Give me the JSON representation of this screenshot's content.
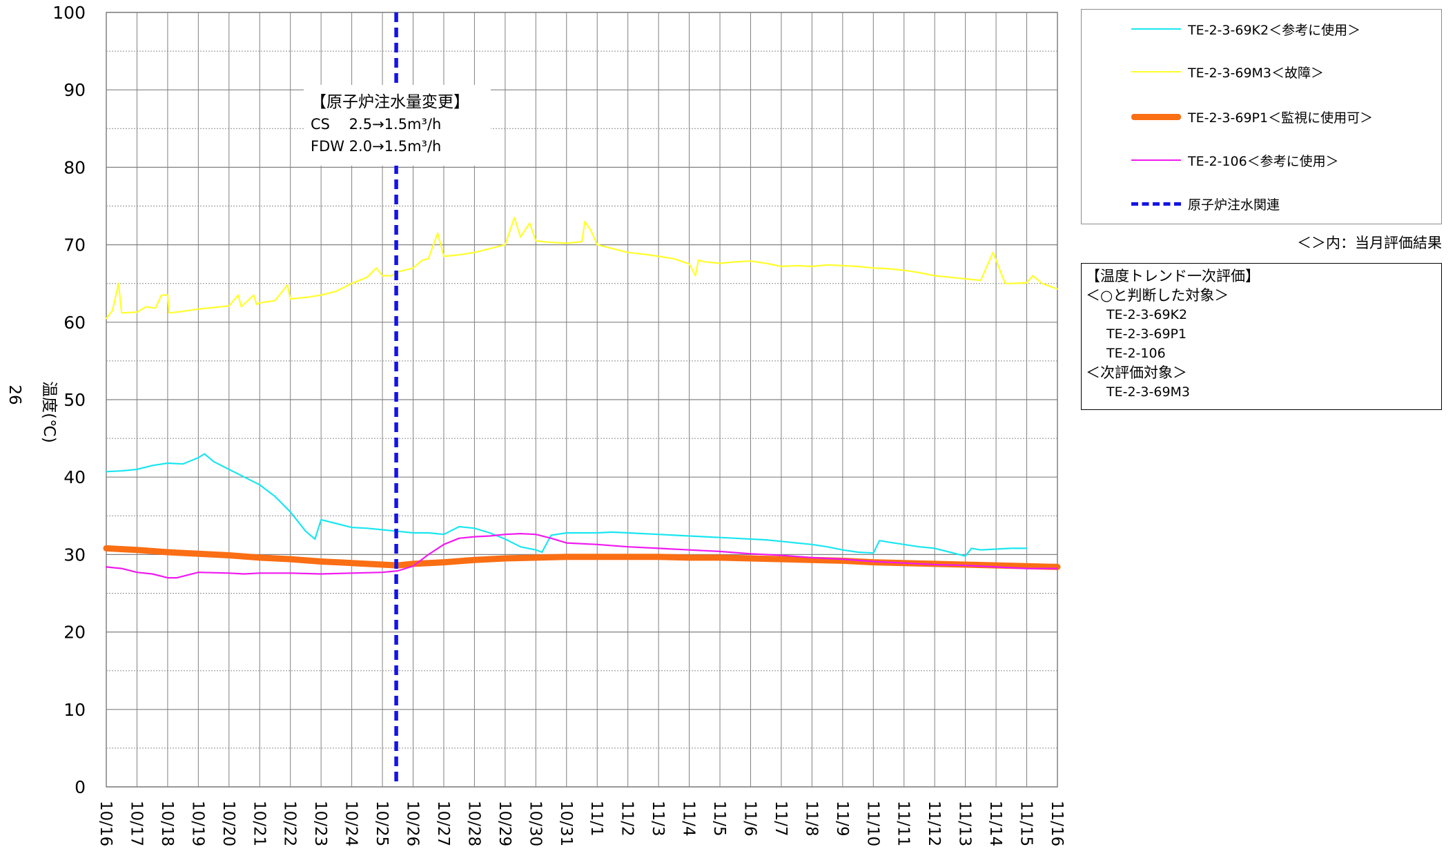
{
  "chart_data": {
    "type": "line",
    "ylabel": "温度(℃)",
    "page_number": "26",
    "ylim": [
      0,
      100
    ],
    "yticks": [
      0,
      10,
      20,
      30,
      40,
      50,
      60,
      70,
      80,
      90,
      100
    ],
    "x_tick_labels": [
      "10/16",
      "10/17",
      "10/18",
      "10/19",
      "10/20",
      "10/21",
      "10/22",
      "10/23",
      "10/24",
      "10/25",
      "10/26",
      "10/27",
      "10/28",
      "10/29",
      "10/30",
      "10/31",
      "11/1",
      "11/2",
      "11/3",
      "11/4",
      "11/5",
      "11/6",
      "11/7",
      "11/8",
      "11/9",
      "11/10",
      "11/11",
      "11/12",
      "11/13",
      "11/14",
      "11/15",
      "11/16"
    ],
    "grid": true,
    "legend_position": "right",
    "series": [
      {
        "name": "TE-2-3-69K2＜参考に使用＞",
        "color": "#19e6f0",
        "style": "thin",
        "points": [
          [
            0,
            40.7
          ],
          [
            0.5,
            40.8
          ],
          [
            1,
            41
          ],
          [
            1.5,
            41.5
          ],
          [
            2,
            41.8
          ],
          [
            2.5,
            41.7
          ],
          [
            3,
            42.5
          ],
          [
            3.2,
            43
          ],
          [
            3.5,
            42
          ],
          [
            4,
            41
          ],
          [
            4.5,
            40
          ],
          [
            5,
            39
          ],
          [
            5.5,
            37.5
          ],
          [
            6,
            35.5
          ],
          [
            6.5,
            33
          ],
          [
            6.8,
            32
          ],
          [
            7,
            34.5
          ],
          [
            7.5,
            34
          ],
          [
            8,
            33.5
          ],
          [
            8.5,
            33.4
          ],
          [
            9,
            33.2
          ],
          [
            9.5,
            33
          ],
          [
            10,
            32.8
          ],
          [
            10.5,
            32.8
          ],
          [
            11,
            32.6
          ],
          [
            11.5,
            33.6
          ],
          [
            12,
            33.4
          ],
          [
            12.5,
            32.8
          ],
          [
            13,
            32
          ],
          [
            13.5,
            31
          ],
          [
            14,
            30.6
          ],
          [
            14.2,
            30.3
          ],
          [
            14.5,
            32.5
          ],
          [
            15,
            32.8
          ],
          [
            15.5,
            32.8
          ],
          [
            16,
            32.8
          ],
          [
            16.5,
            32.9
          ],
          [
            17,
            32.8
          ],
          [
            17.5,
            32.7
          ],
          [
            18,
            32.6
          ],
          [
            18.5,
            32.5
          ],
          [
            19,
            32.4
          ],
          [
            19.5,
            32.3
          ],
          [
            20,
            32.2
          ],
          [
            20.5,
            32.1
          ],
          [
            21,
            32
          ],
          [
            21.5,
            31.9
          ],
          [
            22,
            31.7
          ],
          [
            22.5,
            31.5
          ],
          [
            23,
            31.3
          ],
          [
            23.5,
            31
          ],
          [
            24,
            30.6
          ],
          [
            24.5,
            30.3
          ],
          [
            25,
            30.2
          ],
          [
            25.2,
            31.8
          ],
          [
            25.5,
            31.6
          ],
          [
            26,
            31.3
          ],
          [
            26.5,
            31
          ],
          [
            27,
            30.8
          ],
          [
            27.5,
            30.3
          ],
          [
            28,
            29.8
          ],
          [
            28.2,
            30.8
          ],
          [
            28.5,
            30.6
          ],
          [
            29,
            30.7
          ],
          [
            29.5,
            30.8
          ],
          [
            30,
            30.8
          ]
        ]
      },
      {
        "name": "TE-2-3-69M3＜故障＞",
        "color": "#ffff2a",
        "style": "thin",
        "points": [
          [
            0,
            60.5
          ],
          [
            0.2,
            61.5
          ],
          [
            0.4,
            65
          ],
          [
            0.5,
            61.2
          ],
          [
            1,
            61.3
          ],
          [
            1.3,
            62
          ],
          [
            1.6,
            61.8
          ],
          [
            1.8,
            63.5
          ],
          [
            2,
            63.5
          ],
          [
            2.05,
            61.2
          ],
          [
            2.5,
            61.4
          ],
          [
            3,
            61.7
          ],
          [
            3.5,
            61.9
          ],
          [
            4,
            62.1
          ],
          [
            4.3,
            63.5
          ],
          [
            4.4,
            62
          ],
          [
            4.8,
            63.5
          ],
          [
            4.9,
            62.3
          ],
          [
            5,
            62.5
          ],
          [
            5.5,
            62.8
          ],
          [
            5.9,
            64.8
          ],
          [
            6,
            63
          ],
          [
            6.5,
            63.2
          ],
          [
            7,
            63.5
          ],
          [
            7.5,
            64
          ],
          [
            8,
            65
          ],
          [
            8.5,
            65.8
          ],
          [
            8.8,
            67
          ],
          [
            9,
            66
          ],
          [
            9.3,
            66
          ],
          [
            9.5,
            66.5
          ],
          [
            10,
            67
          ],
          [
            10.3,
            68
          ],
          [
            10.5,
            68.2
          ],
          [
            10.8,
            71.5
          ],
          [
            11,
            68.5
          ],
          [
            11.5,
            68.7
          ],
          [
            12,
            69
          ],
          [
            12.5,
            69.5
          ],
          [
            13,
            70
          ],
          [
            13.3,
            73.5
          ],
          [
            13.5,
            71
          ],
          [
            13.8,
            72.8
          ],
          [
            14,
            70.5
          ],
          [
            14.5,
            70.3
          ],
          [
            15,
            70.2
          ],
          [
            15.5,
            70.4
          ],
          [
            15.6,
            73
          ],
          [
            15.8,
            71.8
          ],
          [
            16,
            70
          ],
          [
            16.5,
            69.5
          ],
          [
            17,
            69
          ],
          [
            17.5,
            68.8
          ],
          [
            18,
            68.5
          ],
          [
            18.5,
            68.2
          ],
          [
            19,
            67.5
          ],
          [
            19.2,
            66
          ],
          [
            19.3,
            68
          ],
          [
            19.5,
            67.8
          ],
          [
            20,
            67.6
          ],
          [
            20.5,
            67.8
          ],
          [
            21,
            67.9
          ],
          [
            21.5,
            67.6
          ],
          [
            22,
            67.2
          ],
          [
            22.5,
            67.3
          ],
          [
            23,
            67.2
          ],
          [
            23.5,
            67.4
          ],
          [
            24,
            67.3
          ],
          [
            24.5,
            67.2
          ],
          [
            25,
            67
          ],
          [
            25.5,
            66.9
          ],
          [
            26,
            66.7
          ],
          [
            26.5,
            66.4
          ],
          [
            27,
            66
          ],
          [
            27.5,
            65.8
          ],
          [
            28,
            65.6
          ],
          [
            28.5,
            65.4
          ],
          [
            28.9,
            69
          ],
          [
            29.1,
            67
          ],
          [
            29.3,
            65
          ],
          [
            29.5,
            65
          ],
          [
            30,
            65.1
          ],
          [
            30.2,
            66
          ],
          [
            30.5,
            65
          ],
          [
            31,
            64.3
          ]
        ]
      },
      {
        "name": "TE-2-3-69P1＜監視に使用可＞",
        "color": "#fa6e14",
        "style": "thick",
        "points": [
          [
            0,
            30.8
          ],
          [
            1,
            30.6
          ],
          [
            2,
            30.3
          ],
          [
            3,
            30.1
          ],
          [
            4,
            29.9
          ],
          [
            5,
            29.6
          ],
          [
            6,
            29.4
          ],
          [
            7,
            29.1
          ],
          [
            8,
            28.9
          ],
          [
            9,
            28.7
          ],
          [
            9.5,
            28.6
          ],
          [
            10,
            28.8
          ],
          [
            11,
            29
          ],
          [
            12,
            29.3
          ],
          [
            13,
            29.5
          ],
          [
            14,
            29.6
          ],
          [
            15,
            29.7
          ],
          [
            16,
            29.7
          ],
          [
            17,
            29.7
          ],
          [
            18,
            29.7
          ],
          [
            19,
            29.6
          ],
          [
            20,
            29.6
          ],
          [
            21,
            29.5
          ],
          [
            22,
            29.4
          ],
          [
            23,
            29.3
          ],
          [
            24,
            29.2
          ],
          [
            25,
            29
          ],
          [
            26,
            28.9
          ],
          [
            27,
            28.8
          ],
          [
            28,
            28.7
          ],
          [
            29,
            28.6
          ],
          [
            30,
            28.5
          ],
          [
            31,
            28.4
          ]
        ]
      },
      {
        "name": "TE-2-106＜参考に使用＞",
        "color": "#f019f0",
        "style": "thin",
        "points": [
          [
            0,
            28.4
          ],
          [
            0.5,
            28.2
          ],
          [
            1,
            27.7
          ],
          [
            1.5,
            27.5
          ],
          [
            2,
            27
          ],
          [
            2.3,
            27
          ],
          [
            2.7,
            27.4
          ],
          [
            3,
            27.7
          ],
          [
            4,
            27.6
          ],
          [
            4.5,
            27.5
          ],
          [
            5,
            27.6
          ],
          [
            6,
            27.6
          ],
          [
            7,
            27.5
          ],
          [
            8,
            27.6
          ],
          [
            9,
            27.7
          ],
          [
            9.5,
            27.9
          ],
          [
            10,
            28.5
          ],
          [
            10.5,
            30
          ],
          [
            11,
            31.3
          ],
          [
            11.5,
            32.1
          ],
          [
            12,
            32.3
          ],
          [
            12.5,
            32.4
          ],
          [
            13,
            32.6
          ],
          [
            13.5,
            32.7
          ],
          [
            14,
            32.6
          ],
          [
            14.5,
            32.1
          ],
          [
            15,
            31.5
          ],
          [
            16,
            31.3
          ],
          [
            17,
            31
          ],
          [
            18,
            30.8
          ],
          [
            19,
            30.6
          ],
          [
            20,
            30.4
          ],
          [
            21,
            30.1
          ],
          [
            22,
            29.9
          ],
          [
            23,
            29.6
          ],
          [
            24,
            29.4
          ],
          [
            25,
            29.1
          ],
          [
            26,
            28.9
          ],
          [
            27,
            28.7
          ],
          [
            28,
            28.6
          ],
          [
            29,
            28.4
          ],
          [
            30,
            28.2
          ],
          [
            31,
            28.2
          ]
        ]
      }
    ],
    "marker": {
      "name": "原子炉注水関連",
      "color": "#1414e6",
      "x": 9.45
    },
    "annotation": {
      "lines": [
        "【原子炉注水量変更】",
        "CS　 2.5→1.5m³/h",
        "FDW  2.0→1.5m³/h"
      ]
    }
  },
  "legend": {
    "items": [
      {
        "label": "TE-2-3-69K2＜参考に使用＞",
        "color": "#19e6f0",
        "style": "thin"
      },
      {
        "label": "TE-2-3-69M3＜故障＞",
        "color": "#ffff2a",
        "style": "thin"
      },
      {
        "label": "TE-2-3-69P1＜監視に使用可＞",
        "color": "#fa6e14",
        "style": "thick"
      },
      {
        "label": "TE-2-106＜参考に使用＞",
        "color": "#f019f0",
        "style": "thin"
      },
      {
        "label": "原子炉注水関連",
        "color": "#1414e6",
        "style": "dashed"
      }
    ],
    "note": "＜＞内：当月評価結果"
  },
  "evaluation": {
    "title": "【温度トレンド一次評価】",
    "ok_header": "＜○と判断した対象＞",
    "ok_items": [
      "TE-2-3-69K2",
      "TE-2-3-69P1",
      "TE-2-106"
    ],
    "next_header": "＜次評価対象＞",
    "next_items": [
      "TE-2-3-69M3"
    ]
  }
}
